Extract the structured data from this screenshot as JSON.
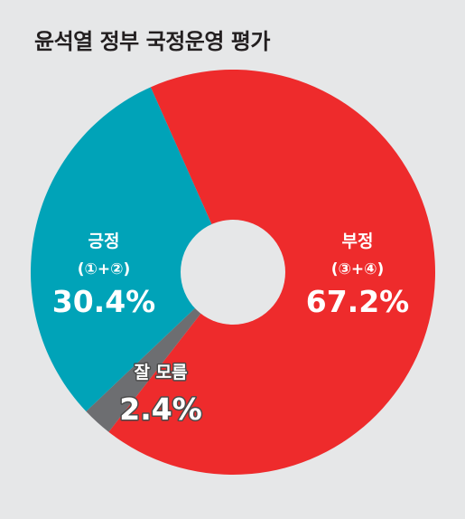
{
  "chart_data": {
    "type": "pie",
    "title": "윤석열 정부 국정운영 평가",
    "slices": [
      {
        "name": "부정",
        "sub": "(③+④)",
        "value": 67.2,
        "label": "67.2%",
        "color": "#ee2b2c"
      },
      {
        "name": "잘 모름",
        "sub": "",
        "value": 2.4,
        "label": "2.4%",
        "color": "#6d6e71"
      },
      {
        "name": "긍정",
        "sub": "(①+②)",
        "value": 30.4,
        "label": "30.4%",
        "color": "#00a3b8"
      }
    ]
  }
}
